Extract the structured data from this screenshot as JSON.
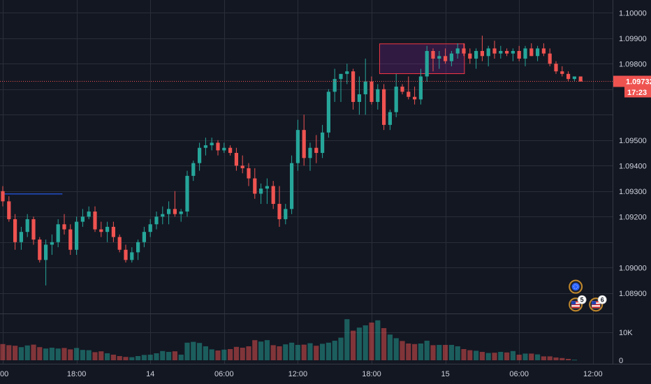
{
  "chart_data": {
    "type": "candlestick",
    "symbol_pair_hint": "",
    "price_axis": {
      "min": 1.0882,
      "max": 1.1005,
      "ticks": [
        1.1,
        1.099,
        1.098,
        1.095,
        1.094,
        1.093,
        1.092,
        1.09,
        1.089
      ],
      "tick_labels": [
        "1.10000",
        "1.09900",
        "1.09800",
        "1.09500",
        "1.09400",
        "1.09300",
        "1.09200",
        "1.09000",
        "1.08900"
      ]
    },
    "volume_axis": {
      "max": 14500,
      "ticks": [
        10000,
        0
      ],
      "tick_labels": [
        "10K",
        "0"
      ]
    },
    "time_axis": {
      "tick_indices": [
        0,
        12,
        24,
        36,
        48,
        60,
        72,
        84,
        96
      ],
      "tick_labels": [
        "00",
        "18:00",
        "14",
        "06:00",
        "12:00",
        "18:00",
        "15",
        "06:00",
        "12:00"
      ]
    },
    "last_price": {
      "value": 1.09732,
      "label": "1.09732",
      "countdown": "17:23"
    },
    "support_line": {
      "price": 1.09289,
      "from_index": 0,
      "to_index": 9.7
    },
    "range_box": {
      "from_index": 61.3,
      "to_index": 75.1,
      "top": 1.09878,
      "bottom": 1.09761
    },
    "event_icons": [
      {
        "index": 93.2,
        "price": 1.08925,
        "kind": "globe-icon",
        "count": ""
      },
      {
        "index": 93.2,
        "price": 1.08855,
        "kind": "us-flag-icon",
        "count": "5"
      },
      {
        "index": 96.5,
        "price": 1.08855,
        "kind": "us-flag-icon",
        "count": "6"
      }
    ],
    "candles": [
      [
        1.093,
        1.0932,
        1.0924,
        1.0926
      ],
      [
        1.0926,
        1.0928,
        1.0918,
        1.0919
      ],
      [
        1.0919,
        1.0921,
        1.0907,
        1.091
      ],
      [
        1.091,
        1.0916,
        1.0907,
        1.0914
      ],
      [
        1.0914,
        1.0921,
        1.0912,
        1.0919
      ],
      [
        1.0919,
        1.092,
        1.0909,
        1.0911
      ],
      [
        1.0911,
        1.0912,
        1.0902,
        1.0903
      ],
      [
        1.0903,
        1.0911,
        1.0893,
        1.0909
      ],
      [
        1.0909,
        1.0913,
        1.0905,
        1.091
      ],
      [
        1.091,
        1.0919,
        1.0908,
        1.0917
      ],
      [
        1.0917,
        1.0921,
        1.0913,
        1.0915
      ],
      [
        1.0915,
        1.0917,
        1.0905,
        1.0907
      ],
      [
        1.0907,
        1.092,
        1.0905,
        1.0918
      ],
      [
        1.0918,
        1.0923,
        1.0916,
        1.092
      ],
      [
        1.092,
        1.0924,
        1.0919,
        1.0922
      ],
      [
        1.0922,
        1.0924,
        1.0914,
        1.0915
      ],
      [
        1.0915,
        1.0918,
        1.0912,
        1.0914
      ],
      [
        1.0914,
        1.0918,
        1.091,
        1.0916
      ],
      [
        1.0916,
        1.0918,
        1.091,
        1.0912
      ],
      [
        1.0912,
        1.0913,
        1.0906,
        1.0907
      ],
      [
        1.0907,
        1.0909,
        1.0902,
        1.0903
      ],
      [
        1.0903,
        1.0908,
        1.0902,
        1.0906
      ],
      [
        1.0906,
        1.0911,
        1.0903,
        1.091
      ],
      [
        1.091,
        1.0916,
        1.0908,
        1.0914
      ],
      [
        1.0914,
        1.0919,
        1.0912,
        1.0917
      ],
      [
        1.0917,
        1.0922,
        1.0915,
        1.092
      ],
      [
        1.092,
        1.0924,
        1.0917,
        1.0921
      ],
      [
        1.0921,
        1.0926,
        1.0917,
        1.0923
      ],
      [
        1.0923,
        1.093,
        1.092,
        1.0921
      ],
      [
        1.0921,
        1.0923,
        1.0918,
        1.0922
      ],
      [
        1.0922,
        1.0938,
        1.092,
        1.0936
      ],
      [
        1.0936,
        1.0942,
        1.0934,
        1.0941
      ],
      [
        1.0941,
        1.0949,
        1.0938,
        1.0947
      ],
      [
        1.0947,
        1.0951,
        1.0944,
        1.0948
      ],
      [
        1.0948,
        1.0951,
        1.0946,
        1.0949
      ],
      [
        1.0949,
        1.095,
        1.0944,
        1.0946
      ],
      [
        1.0946,
        1.0949,
        1.0945,
        1.0947
      ],
      [
        1.0947,
        1.0948,
        1.0944,
        1.0945
      ],
      [
        1.0945,
        1.0947,
        1.0938,
        1.094
      ],
      [
        1.094,
        1.0944,
        1.0937,
        1.0939
      ],
      [
        1.0939,
        1.0941,
        1.0932,
        1.0935
      ],
      [
        1.0935,
        1.0939,
        1.0927,
        1.0929
      ],
      [
        1.0929,
        1.0933,
        1.0925,
        1.0931
      ],
      [
        1.0931,
        1.0935,
        1.0925,
        1.0932
      ],
      [
        1.0932,
        1.0934,
        1.0923,
        1.0925
      ],
      [
        1.0925,
        1.0932,
        1.0916,
        1.0919
      ],
      [
        1.0919,
        1.0925,
        1.0917,
        1.0923
      ],
      [
        1.0923,
        1.0944,
        1.0921,
        1.0941
      ],
      [
        1.0941,
        1.0958,
        1.0938,
        1.0954
      ],
      [
        1.0954,
        1.096,
        1.094,
        1.0943
      ],
      [
        1.0943,
        1.0949,
        1.0938,
        1.0947
      ],
      [
        1.0947,
        1.0952,
        1.0941,
        1.0945
      ],
      [
        1.0945,
        1.0956,
        1.0943,
        1.0953
      ],
      [
        1.0953,
        1.097,
        1.0951,
        1.0969
      ],
      [
        1.0969,
        1.0978,
        1.0965,
        1.0974
      ],
      [
        1.0974,
        1.0976,
        1.0965,
        1.0976
      ],
      [
        1.0976,
        1.098,
        1.0972,
        1.0977
      ],
      [
        1.0977,
        1.0978,
        1.0962,
        1.0965
      ],
      [
        1.0965,
        1.0975,
        1.096,
        1.0968
      ],
      [
        1.0968,
        1.0982,
        1.096,
        1.0973
      ],
      [
        1.0973,
        1.0975,
        1.0964,
        1.0965
      ],
      [
        1.0965,
        1.0972,
        1.0962,
        1.097
      ],
      [
        1.097,
        1.0972,
        1.0954,
        1.0956
      ],
      [
        1.0956,
        1.0962,
        1.0954,
        1.0961
      ],
      [
        1.0961,
        1.0976,
        1.0959,
        1.0971
      ],
      [
        1.0971,
        1.0972,
        1.0968,
        1.0969
      ],
      [
        1.0969,
        1.0975,
        1.0966,
        1.0967
      ],
      [
        1.0967,
        1.0971,
        1.0964,
        1.0966
      ],
      [
        1.0966,
        1.0978,
        1.0964,
        1.0975
      ],
      [
        1.0975,
        1.0987,
        1.0973,
        1.0985
      ],
      [
        1.0985,
        1.0986,
        1.0977,
        1.0982
      ],
      [
        1.0982,
        1.0985,
        1.0978,
        1.0983
      ],
      [
        1.0983,
        1.0986,
        1.098,
        1.0981
      ],
      [
        1.0981,
        1.0985,
        1.0979,
        1.0984
      ],
      [
        1.0984,
        1.0988,
        1.0982,
        1.0986
      ],
      [
        1.0986,
        1.0988,
        1.0983,
        1.0984
      ],
      [
        1.0984,
        1.0986,
        1.098,
        1.0982
      ],
      [
        1.0982,
        1.0986,
        1.0978,
        1.0985
      ],
      [
        1.0985,
        1.0991,
        1.0981,
        1.0983
      ],
      [
        1.0983,
        1.0987,
        1.0979,
        1.0986
      ],
      [
        1.0986,
        1.0989,
        1.0982,
        1.0984
      ],
      [
        1.0984,
        1.0987,
        1.0982,
        1.0985
      ],
      [
        1.0985,
        1.0986,
        1.0983,
        1.0984
      ],
      [
        1.0984,
        1.0986,
        1.0981,
        1.0985
      ],
      [
        1.0985,
        1.0987,
        1.0981,
        1.0982
      ],
      [
        1.0982,
        1.0987,
        1.0979,
        1.0986
      ],
      [
        1.0986,
        1.0988,
        1.0983,
        1.0983
      ],
      [
        1.0983,
        1.0987,
        1.0981,
        1.0986
      ],
      [
        1.0986,
        1.0988,
        1.0983,
        1.0984
      ],
      [
        1.0984,
        1.0986,
        1.0979,
        1.098
      ],
      [
        1.098,
        1.0981,
        1.0976,
        1.0977
      ],
      [
        1.0977,
        1.0979,
        1.0975,
        1.0976
      ],
      [
        1.0976,
        1.0977,
        1.0973,
        1.0974
      ],
      [
        1.0974,
        1.0975,
        1.0973,
        1.0975
      ],
      [
        1.0975,
        1.0975,
        1.0973,
        1.0973
      ]
    ],
    "volumes": [
      5800,
      5400,
      5200,
      4700,
      5300,
      5600,
      4700,
      4200,
      4500,
      4200,
      4400,
      3900,
      4400,
      3700,
      3600,
      2900,
      3200,
      2500,
      2000,
      1500,
      1200,
      1100,
      1500,
      1900,
      2000,
      2500,
      3300,
      3000,
      3200,
      2000,
      6300,
      6600,
      6200,
      5000,
      3900,
      3500,
      3800,
      4000,
      4800,
      4500,
      5000,
      7200,
      6700,
      7200,
      5400,
      5000,
      5700,
      6300,
      5500,
      5600,
      6100,
      5200,
      5900,
      6300,
      7000,
      8100,
      14700,
      10600,
      11700,
      12500,
      13500,
      14300,
      11500,
      9200,
      7900,
      6900,
      6000,
      5800,
      6000,
      7000,
      5400,
      5500,
      5500,
      5500,
      5000,
      4000,
      3600,
      3400,
      3000,
      2600,
      2700,
      3000,
      2800,
      3300,
      2000,
      2400,
      2400,
      2100,
      1400,
      1400,
      1000,
      800,
      500,
      200
    ]
  }
}
